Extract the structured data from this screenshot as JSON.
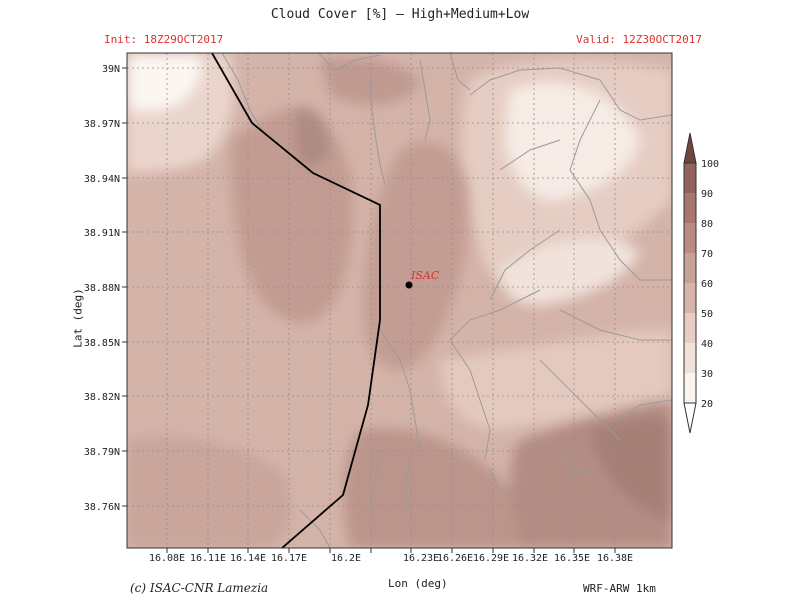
{
  "title": "Cloud Cover [%] — High+Medium+Low",
  "init_label": "Init: 18Z29OCT2017",
  "valid_label": "Valid: 12Z30OCT2017",
  "xlabel": "Lon (deg)",
  "ylabel": "Lat (deg)",
  "credit": "(c) ISAC-CNR Lamezia",
  "model": "WRF-ARW 1km",
  "station": {
    "name": "ISAC",
    "lon": 16.236,
    "lat": 38.881
  },
  "x_ticks": [
    "16.08E",
    "16.11E",
    "16.14E",
    "16.17E",
    "16.2E",
    "16.23E",
    "16.26E",
    "16.29E",
    "16.32E",
    "16.35E",
    "16.38E"
  ],
  "y_ticks": [
    "39N",
    "38.97N",
    "38.94N",
    "38.91N",
    "38.88N",
    "38.85N",
    "38.82N",
    "38.79N",
    "38.76N"
  ],
  "colorbar": {
    "levels": [
      "20",
      "30",
      "40",
      "50",
      "60",
      "70",
      "80",
      "90",
      "100"
    ],
    "colors": [
      "#fbf4ee",
      "#f2e1d8",
      "#e8cdc4",
      "#d8b5aa",
      "#c9a096",
      "#b98b83",
      "#a8766f",
      "#92625c",
      "#6e4640"
    ]
  },
  "chart_data": {
    "type": "heatmap",
    "variable": "Cloud Cover [%]",
    "levels": [
      20,
      30,
      40,
      50,
      60,
      70,
      80,
      90,
      100
    ],
    "xlim": [
      16.06,
      16.4
    ],
    "ylim": [
      38.74,
      39.01
    ]
  }
}
